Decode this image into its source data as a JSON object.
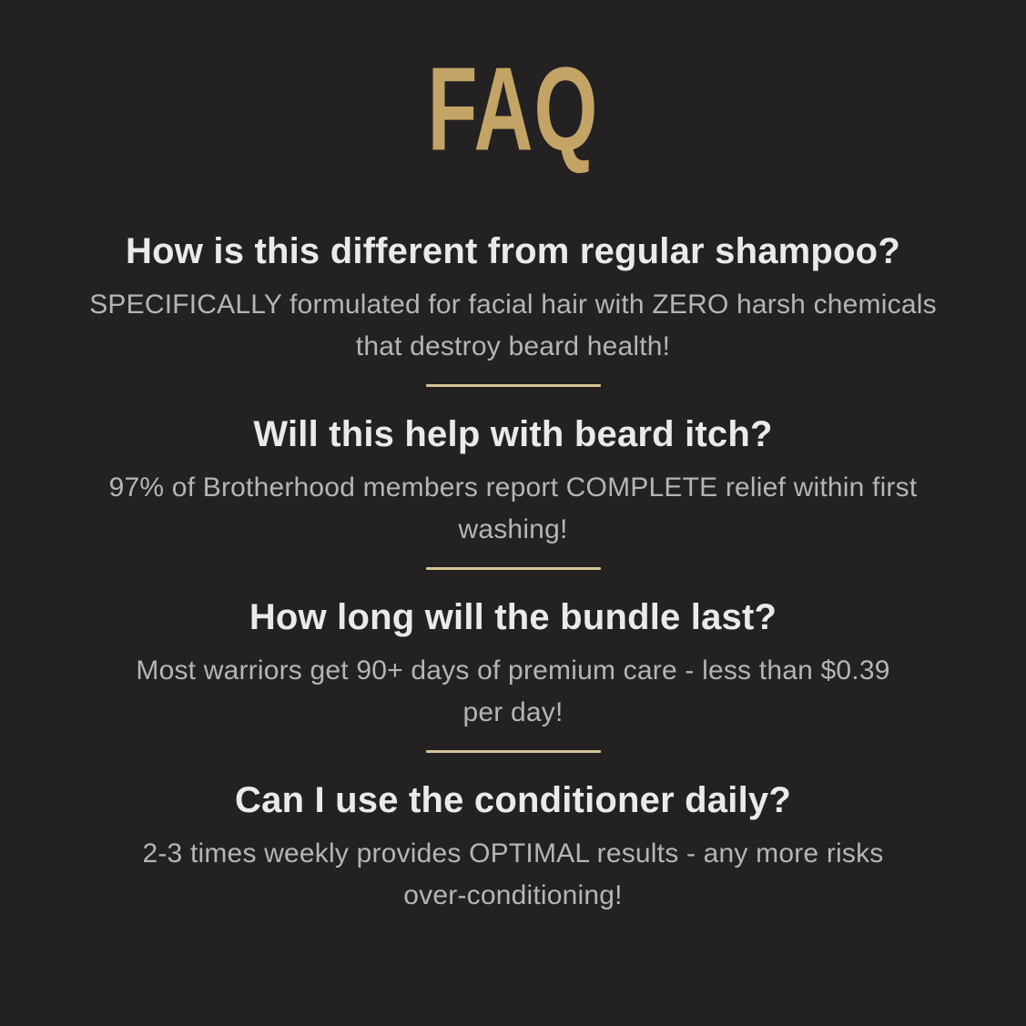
{
  "page": {
    "background_color": "#242122"
  },
  "title": {
    "text": "FAQ",
    "color": "#C3A466"
  },
  "divider": {
    "color": "#D6C494"
  },
  "text_colors": {
    "question": "#EAEAEA",
    "answer": "#B5B5B5"
  },
  "faq": {
    "items": [
      {
        "question": "How is this different from regular shampoo?",
        "answer": [
          "SPECIFICALLY formulated for facial hair with ZERO harsh chemicals",
          "that destroy beard health!"
        ]
      },
      {
        "question": "Will this help with beard itch?",
        "answer": [
          "97% of Brotherhood members report COMPLETE relief within first",
          "washing!"
        ]
      },
      {
        "question": "How long will the bundle last?",
        "answer": [
          "Most warriors get 90+ days of premium care - less than $0.39",
          "per day!"
        ]
      },
      {
        "question": "Can I use the conditioner daily?",
        "answer": [
          "2-3 times weekly provides OPTIMAL results - any more risks",
          "over-conditioning!"
        ]
      }
    ]
  }
}
